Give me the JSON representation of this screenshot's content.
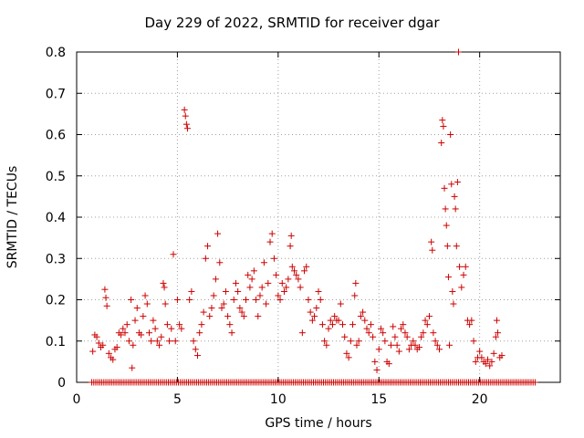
{
  "chart_data": {
    "type": "scatter",
    "title": "Day 229 of 2022, SRMTID for receiver dgar",
    "xlabel": "GPS time / hours",
    "ylabel": "SRMTID / TECUs",
    "xlim": [
      0,
      24
    ],
    "ylim": [
      0,
      0.8
    ],
    "xticks": [
      0,
      5,
      10,
      15,
      20
    ],
    "yticks": [
      0,
      0.1,
      0.2,
      0.3,
      0.4,
      0.5,
      0.6,
      0.7,
      0.8
    ],
    "grid": true,
    "marker": "+",
    "color": "#cc0000",
    "zero_band": {
      "x_start": 0.75,
      "x_end": 22.8,
      "step": 0.1,
      "y": 0
    },
    "series": [
      {
        "name": "dgar",
        "points": [
          [
            0.8,
            0.075
          ],
          [
            0.9,
            0.115
          ],
          [
            1.0,
            0.11
          ],
          [
            1.1,
            0.095
          ],
          [
            1.2,
            0.085
          ],
          [
            1.3,
            0.09
          ],
          [
            1.4,
            0.225
          ],
          [
            1.45,
            0.205
          ],
          [
            1.5,
            0.185
          ],
          [
            1.6,
            0.07
          ],
          [
            1.7,
            0.06
          ],
          [
            1.8,
            0.055
          ],
          [
            1.9,
            0.08
          ],
          [
            2.0,
            0.085
          ],
          [
            2.1,
            0.12
          ],
          [
            2.2,
            0.115
          ],
          [
            2.3,
            0.13
          ],
          [
            2.4,
            0.12
          ],
          [
            2.5,
            0.14
          ],
          [
            2.6,
            0.1
          ],
          [
            2.7,
            0.2
          ],
          [
            2.75,
            0.035
          ],
          [
            2.8,
            0.09
          ],
          [
            2.9,
            0.15
          ],
          [
            3.0,
            0.18
          ],
          [
            3.1,
            0.12
          ],
          [
            3.2,
            0.115
          ],
          [
            3.3,
            0.16
          ],
          [
            3.4,
            0.21
          ],
          [
            3.5,
            0.19
          ],
          [
            3.6,
            0.12
          ],
          [
            3.7,
            0.1
          ],
          [
            3.8,
            0.15
          ],
          [
            3.9,
            0.13
          ],
          [
            4.0,
            0.1
          ],
          [
            4.1,
            0.09
          ],
          [
            4.2,
            0.11
          ],
          [
            4.3,
            0.24
          ],
          [
            4.35,
            0.23
          ],
          [
            4.4,
            0.19
          ],
          [
            4.5,
            0.14
          ],
          [
            4.6,
            0.1
          ],
          [
            4.7,
            0.13
          ],
          [
            4.8,
            0.31
          ],
          [
            4.9,
            0.1
          ],
          [
            5.0,
            0.2
          ],
          [
            5.1,
            0.14
          ],
          [
            5.2,
            0.13
          ],
          [
            5.35,
            0.66
          ],
          [
            5.4,
            0.645
          ],
          [
            5.45,
            0.625
          ],
          [
            5.5,
            0.615
          ],
          [
            5.6,
            0.2
          ],
          [
            5.7,
            0.22
          ],
          [
            5.8,
            0.1
          ],
          [
            5.9,
            0.08
          ],
          [
            6.0,
            0.065
          ],
          [
            6.1,
            0.12
          ],
          [
            6.2,
            0.14
          ],
          [
            6.3,
            0.17
          ],
          [
            6.4,
            0.3
          ],
          [
            6.5,
            0.33
          ],
          [
            6.6,
            0.16
          ],
          [
            6.7,
            0.18
          ],
          [
            6.8,
            0.21
          ],
          [
            6.9,
            0.25
          ],
          [
            7.0,
            0.36
          ],
          [
            7.1,
            0.29
          ],
          [
            7.2,
            0.18
          ],
          [
            7.3,
            0.19
          ],
          [
            7.4,
            0.22
          ],
          [
            7.5,
            0.16
          ],
          [
            7.6,
            0.14
          ],
          [
            7.7,
            0.12
          ],
          [
            7.8,
            0.2
          ],
          [
            7.9,
            0.24
          ],
          [
            8.0,
            0.22
          ],
          [
            8.1,
            0.18
          ],
          [
            8.2,
            0.17
          ],
          [
            8.3,
            0.16
          ],
          [
            8.4,
            0.2
          ],
          [
            8.5,
            0.26
          ],
          [
            8.6,
            0.23
          ],
          [
            8.7,
            0.25
          ],
          [
            8.8,
            0.27
          ],
          [
            8.9,
            0.2
          ],
          [
            9.0,
            0.16
          ],
          [
            9.1,
            0.21
          ],
          [
            9.2,
            0.23
          ],
          [
            9.3,
            0.29
          ],
          [
            9.4,
            0.19
          ],
          [
            9.5,
            0.24
          ],
          [
            9.6,
            0.34
          ],
          [
            9.7,
            0.36
          ],
          [
            9.8,
            0.3
          ],
          [
            9.9,
            0.26
          ],
          [
            10.0,
            0.21
          ],
          [
            10.1,
            0.2
          ],
          [
            10.2,
            0.24
          ],
          [
            10.3,
            0.22
          ],
          [
            10.4,
            0.23
          ],
          [
            10.5,
            0.25
          ],
          [
            10.6,
            0.33
          ],
          [
            10.65,
            0.355
          ],
          [
            10.7,
            0.28
          ],
          [
            10.8,
            0.27
          ],
          [
            10.9,
            0.26
          ],
          [
            11.0,
            0.25
          ],
          [
            11.1,
            0.23
          ],
          [
            11.2,
            0.12
          ],
          [
            11.3,
            0.27
          ],
          [
            11.4,
            0.28
          ],
          [
            11.5,
            0.2
          ],
          [
            11.6,
            0.17
          ],
          [
            11.7,
            0.15
          ],
          [
            11.8,
            0.16
          ],
          [
            11.9,
            0.18
          ],
          [
            12.0,
            0.22
          ],
          [
            12.1,
            0.2
          ],
          [
            12.2,
            0.14
          ],
          [
            12.3,
            0.1
          ],
          [
            12.4,
            0.09
          ],
          [
            12.5,
            0.13
          ],
          [
            12.6,
            0.15
          ],
          [
            12.7,
            0.14
          ],
          [
            12.8,
            0.16
          ],
          [
            12.9,
            0.15
          ],
          [
            13.0,
            0.15
          ],
          [
            13.1,
            0.19
          ],
          [
            13.2,
            0.14
          ],
          [
            13.3,
            0.11
          ],
          [
            13.4,
            0.07
          ],
          [
            13.5,
            0.06
          ],
          [
            13.6,
            0.1
          ],
          [
            13.7,
            0.14
          ],
          [
            13.8,
            0.21
          ],
          [
            13.85,
            0.24
          ],
          [
            13.9,
            0.09
          ],
          [
            14.0,
            0.1
          ],
          [
            14.1,
            0.16
          ],
          [
            14.2,
            0.17
          ],
          [
            14.3,
            0.15
          ],
          [
            14.4,
            0.13
          ],
          [
            14.5,
            0.12
          ],
          [
            14.6,
            0.14
          ],
          [
            14.7,
            0.11
          ],
          [
            14.8,
            0.05
          ],
          [
            14.9,
            0.03
          ],
          [
            15.0,
            0.08
          ],
          [
            15.1,
            0.13
          ],
          [
            15.2,
            0.12
          ],
          [
            15.3,
            0.1
          ],
          [
            15.4,
            0.05
          ],
          [
            15.5,
            0.045
          ],
          [
            15.6,
            0.09
          ],
          [
            15.7,
            0.135
          ],
          [
            15.8,
            0.11
          ],
          [
            15.9,
            0.09
          ],
          [
            16.0,
            0.075
          ],
          [
            16.1,
            0.13
          ],
          [
            16.2,
            0.14
          ],
          [
            16.3,
            0.12
          ],
          [
            16.4,
            0.11
          ],
          [
            16.5,
            0.08
          ],
          [
            16.6,
            0.09
          ],
          [
            16.7,
            0.1
          ],
          [
            16.8,
            0.09
          ],
          [
            16.9,
            0.08
          ],
          [
            17.0,
            0.085
          ],
          [
            17.1,
            0.11
          ],
          [
            17.2,
            0.12
          ],
          [
            17.3,
            0.15
          ],
          [
            17.4,
            0.14
          ],
          [
            17.5,
            0.16
          ],
          [
            17.6,
            0.34
          ],
          [
            17.65,
            0.32
          ],
          [
            17.7,
            0.12
          ],
          [
            17.8,
            0.1
          ],
          [
            17.9,
            0.09
          ],
          [
            18.0,
            0.08
          ],
          [
            18.1,
            0.58
          ],
          [
            18.15,
            0.635
          ],
          [
            18.2,
            0.62
          ],
          [
            18.25,
            0.47
          ],
          [
            18.3,
            0.42
          ],
          [
            18.35,
            0.38
          ],
          [
            18.4,
            0.33
          ],
          [
            18.45,
            0.255
          ],
          [
            18.5,
            0.09
          ],
          [
            18.55,
            0.6
          ],
          [
            18.6,
            0.48
          ],
          [
            18.65,
            0.22
          ],
          [
            18.7,
            0.19
          ],
          [
            18.75,
            0.45
          ],
          [
            18.8,
            0.42
          ],
          [
            18.85,
            0.33
          ],
          [
            18.9,
            0.485
          ],
          [
            18.95,
            0.8
          ],
          [
            19.0,
            0.28
          ],
          [
            19.1,
            0.23
          ],
          [
            19.2,
            0.26
          ],
          [
            19.3,
            0.28
          ],
          [
            19.4,
            0.15
          ],
          [
            19.5,
            0.14
          ],
          [
            19.6,
            0.15
          ],
          [
            19.7,
            0.1
          ],
          [
            19.8,
            0.05
          ],
          [
            19.9,
            0.06
          ],
          [
            20.0,
            0.075
          ],
          [
            20.1,
            0.06
          ],
          [
            20.2,
            0.05
          ],
          [
            20.3,
            0.045
          ],
          [
            20.4,
            0.055
          ],
          [
            20.5,
            0.04
          ],
          [
            20.6,
            0.05
          ],
          [
            20.7,
            0.07
          ],
          [
            20.8,
            0.11
          ],
          [
            20.85,
            0.15
          ],
          [
            20.9,
            0.12
          ],
          [
            21.0,
            0.06
          ],
          [
            21.1,
            0.065
          ]
        ]
      }
    ]
  }
}
